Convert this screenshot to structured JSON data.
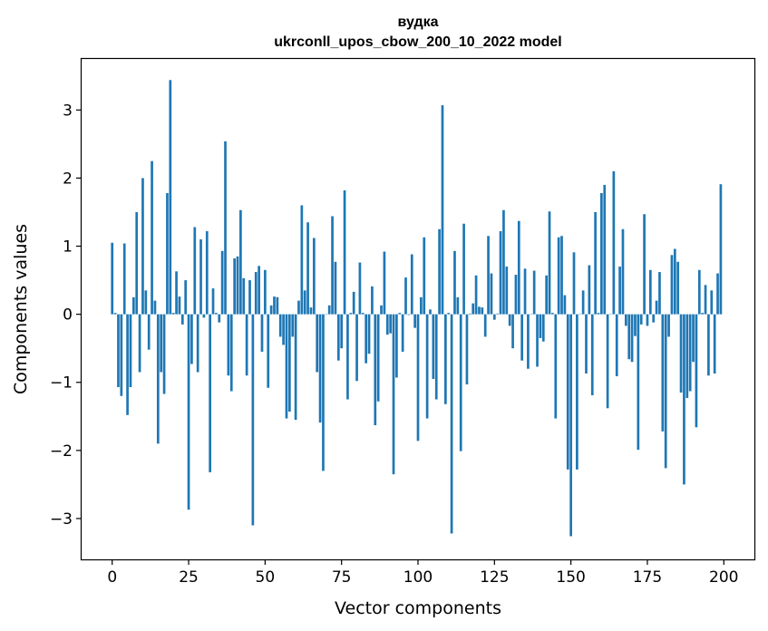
{
  "chart_data": {
    "type": "bar",
    "title": "вудка",
    "subtitle": "ukrconll_upos_cbow_200_10_2022 model",
    "xlabel": "Vector components",
    "ylabel": "Components values",
    "xlim": [
      -10,
      210
    ],
    "ylim": [
      -3.6,
      3.75
    ],
    "xticks": [
      0,
      25,
      50,
      75,
      100,
      125,
      150,
      175,
      200
    ],
    "xtick_labels": [
      "0",
      "25",
      "50",
      "75",
      "100",
      "125",
      "150",
      "175",
      "200"
    ],
    "yticks": [
      3,
      2,
      1,
      0,
      -1,
      -2,
      -3
    ],
    "ytick_labels": [
      "3",
      "2",
      "1",
      "0",
      "−1",
      "−2",
      "−3"
    ],
    "grid": false,
    "bar_color": "#1f77b4",
    "x": [
      0,
      1,
      2,
      3,
      4,
      5,
      6,
      7,
      8,
      9,
      10,
      11,
      12,
      13,
      14,
      15,
      16,
      17,
      18,
      19,
      20,
      21,
      22,
      23,
      24,
      25,
      26,
      27,
      28,
      29,
      30,
      31,
      32,
      33,
      34,
      35,
      36,
      37,
      38,
      39,
      40,
      41,
      42,
      43,
      44,
      45,
      46,
      47,
      48,
      49,
      50,
      51,
      52,
      53,
      54,
      55,
      56,
      57,
      58,
      59,
      60,
      61,
      62,
      63,
      64,
      65,
      66,
      67,
      68,
      69,
      70,
      71,
      72,
      73,
      74,
      75,
      76,
      77,
      78,
      79,
      80,
      81,
      82,
      83,
      84,
      85,
      86,
      87,
      88,
      89,
      90,
      91,
      92,
      93,
      94,
      95,
      96,
      97,
      98,
      99,
      100,
      101,
      102,
      103,
      104,
      105,
      106,
      107,
      108,
      109,
      110,
      111,
      112,
      113,
      114,
      115,
      116,
      117,
      118,
      119,
      120,
      121,
      122,
      123,
      124,
      125,
      126,
      127,
      128,
      129,
      130,
      131,
      132,
      133,
      134,
      135,
      136,
      137,
      138,
      139,
      140,
      141,
      142,
      143,
      144,
      145,
      146,
      147,
      148,
      149,
      150,
      151,
      152,
      153,
      154,
      155,
      156,
      157,
      158,
      159,
      160,
      161,
      162,
      163,
      164,
      165,
      166,
      167,
      168,
      169,
      170,
      171,
      172,
      173,
      174,
      175,
      176,
      177,
      178,
      179,
      180,
      181,
      182,
      183,
      184,
      185,
      186,
      187,
      188,
      189,
      190,
      191,
      192,
      193,
      194,
      195,
      196,
      197,
      198,
      199
    ],
    "values": [
      1.05,
      0.02,
      -1.07,
      -1.2,
      1.04,
      -1.48,
      -1.07,
      0.25,
      1.5,
      -0.85,
      2.0,
      0.35,
      -0.52,
      2.25,
      0.2,
      -1.9,
      -0.85,
      -1.17,
      1.78,
      3.44,
      0.02,
      0.63,
      0.26,
      -0.15,
      0.5,
      -2.87,
      -0.73,
      1.28,
      -0.85,
      1.1,
      -0.05,
      1.22,
      -2.32,
      0.38,
      0.02,
      -0.12,
      0.93,
      2.54,
      -0.9,
      -1.13,
      0.82,
      0.85,
      1.53,
      0.53,
      -0.9,
      0.5,
      -3.1,
      0.62,
      0.71,
      -0.55,
      0.65,
      -1.08,
      0.13,
      0.26,
      0.25,
      -0.33,
      -0.45,
      -1.53,
      -1.43,
      -0.33,
      -1.55,
      0.2,
      1.6,
      0.35,
      1.35,
      0.1,
      1.12,
      -0.85,
      -1.59,
      -2.3,
      0.0,
      0.13,
      1.44,
      0.77,
      -0.68,
      -0.5,
      1.82,
      -1.25,
      0.02,
      0.33,
      -0.98,
      0.76,
      0.02,
      -0.72,
      -0.58,
      0.41,
      -1.63,
      -1.28,
      0.13,
      0.92,
      -0.3,
      -0.28,
      -2.35,
      -0.93,
      0.02,
      -0.55,
      0.54,
      -0.01,
      0.88,
      -0.2,
      -1.86,
      0.25,
      1.13,
      -1.53,
      0.07,
      -0.95,
      -1.25,
      1.25,
      3.07,
      -1.32,
      0.02,
      -3.22,
      0.93,
      0.25,
      -2.01,
      1.33,
      -1.03,
      0.01,
      0.16,
      0.57,
      0.11,
      0.1,
      -0.33,
      1.15,
      0.6,
      -0.08,
      0.01,
      1.22,
      1.53,
      0.7,
      -0.17,
      -0.5,
      0.58,
      1.37,
      -0.68,
      0.67,
      -0.8,
      0.0,
      0.64,
      -0.77,
      -0.35,
      -0.4,
      0.57,
      1.51,
      0.02,
      -1.53,
      1.13,
      1.15,
      0.28,
      -2.28,
      -3.26,
      0.91,
      -2.28,
      0.0,
      0.35,
      -0.87,
      0.72,
      -1.19,
      1.5,
      0.02,
      1.78,
      1.9,
      -1.38,
      0.0,
      2.1,
      -0.91,
      0.7,
      1.25,
      -0.17,
      -0.66,
      -0.7,
      -0.32,
      -1.99,
      -0.15,
      1.47,
      -0.17,
      0.65,
      -0.12,
      0.2,
      0.62,
      -1.72,
      -2.26,
      -0.33,
      0.87,
      0.96,
      0.77,
      -1.15,
      -2.5,
      -1.23,
      -1.13,
      -0.7,
      -1.66,
      0.65,
      0.02,
      0.43,
      -0.9,
      0.35,
      -0.87,
      0.6,
      1.91
    ]
  }
}
